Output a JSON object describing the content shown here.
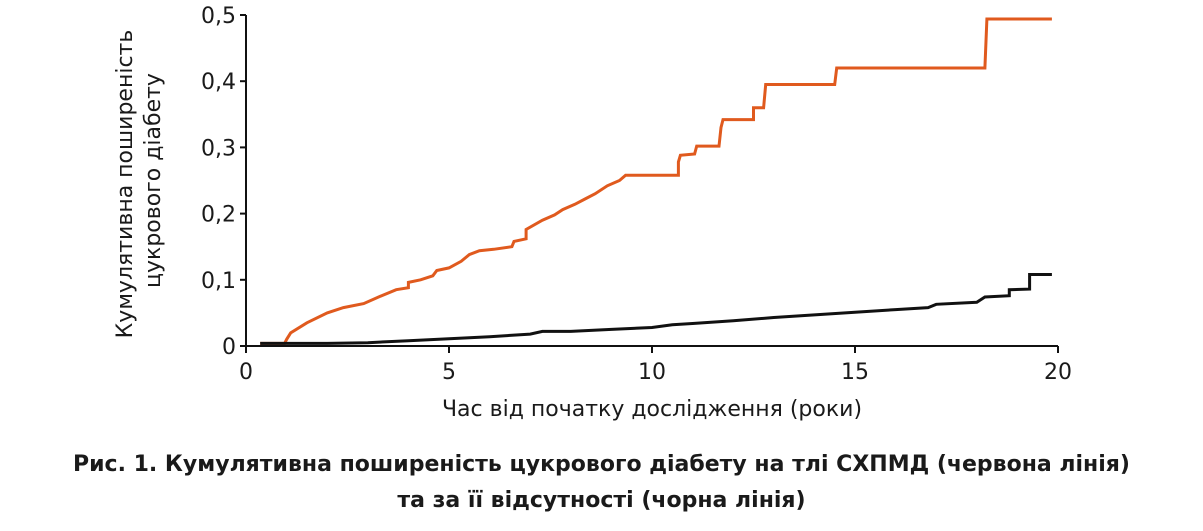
{
  "chart_data": {
    "type": "line",
    "xlabel": "Час від початку дослідження (роки)",
    "ylabel_lines": [
      "Кумулятивна поширеність",
      "цукрового діабету"
    ],
    "xlim": [
      0,
      20
    ],
    "ylim": [
      0,
      0.5
    ],
    "x_ticks": [
      0,
      5,
      10,
      15,
      20
    ],
    "x_tick_labels": [
      "0",
      "5",
      "10",
      "15",
      "20"
    ],
    "y_ticks": [
      0,
      0.1,
      0.2,
      0.3,
      0.4,
      0.5
    ],
    "y_tick_labels": [
      "0",
      "0,1",
      "0,2",
      "0,3",
      "0,4",
      "0,5"
    ],
    "grid": false,
    "series": [
      {
        "color": "#e05a1e",
        "points": [
          [
            0.35,
            0.004
          ],
          [
            0.95,
            0.004
          ],
          [
            1.0,
            0.01
          ],
          [
            1.1,
            0.02
          ],
          [
            1.5,
            0.035
          ],
          [
            2.0,
            0.05
          ],
          [
            2.4,
            0.058
          ],
          [
            2.9,
            0.064
          ],
          [
            3.3,
            0.075
          ],
          [
            3.7,
            0.085
          ],
          [
            4.0,
            0.088
          ],
          [
            4.0,
            0.096
          ],
          [
            4.3,
            0.1
          ],
          [
            4.6,
            0.106
          ],
          [
            4.7,
            0.114
          ],
          [
            5.0,
            0.118
          ],
          [
            5.3,
            0.128
          ],
          [
            5.5,
            0.138
          ],
          [
            5.75,
            0.144
          ],
          [
            6.1,
            0.146
          ],
          [
            6.55,
            0.15
          ],
          [
            6.6,
            0.158
          ],
          [
            6.9,
            0.162
          ],
          [
            6.9,
            0.176
          ],
          [
            7.3,
            0.19
          ],
          [
            7.6,
            0.198
          ],
          [
            7.8,
            0.206
          ],
          [
            8.1,
            0.214
          ],
          [
            8.35,
            0.222
          ],
          [
            8.6,
            0.23
          ],
          [
            8.9,
            0.242
          ],
          [
            9.2,
            0.25
          ],
          [
            9.35,
            0.258
          ],
          [
            10.65,
            0.258
          ],
          [
            10.65,
            0.278
          ],
          [
            10.7,
            0.288
          ],
          [
            11.05,
            0.29
          ],
          [
            11.1,
            0.302
          ],
          [
            11.65,
            0.302
          ],
          [
            11.7,
            0.33
          ],
          [
            11.75,
            0.342
          ],
          [
            12.5,
            0.342
          ],
          [
            12.5,
            0.36
          ],
          [
            12.75,
            0.36
          ],
          [
            12.8,
            0.395
          ],
          [
            14.5,
            0.395
          ],
          [
            14.55,
            0.42
          ],
          [
            18.2,
            0.42
          ],
          [
            18.25,
            0.494
          ],
          [
            19.85,
            0.494
          ]
        ]
      },
      {
        "color": "#111111",
        "points": [
          [
            0.35,
            0.004
          ],
          [
            2.0,
            0.004
          ],
          [
            3.0,
            0.005
          ],
          [
            4.0,
            0.008
          ],
          [
            5.0,
            0.011
          ],
          [
            6.0,
            0.014
          ],
          [
            7.0,
            0.018
          ],
          [
            7.3,
            0.022
          ],
          [
            8.0,
            0.022
          ],
          [
            9.0,
            0.025
          ],
          [
            10.0,
            0.028
          ],
          [
            10.5,
            0.032
          ],
          [
            11.0,
            0.034
          ],
          [
            12.0,
            0.038
          ],
          [
            13.0,
            0.043
          ],
          [
            14.0,
            0.047
          ],
          [
            15.0,
            0.051
          ],
          [
            16.0,
            0.055
          ],
          [
            16.8,
            0.058
          ],
          [
            17.0,
            0.063
          ],
          [
            18.0,
            0.066
          ],
          [
            18.2,
            0.074
          ],
          [
            18.8,
            0.076
          ],
          [
            18.8,
            0.085
          ],
          [
            19.3,
            0.086
          ],
          [
            19.3,
            0.108
          ],
          [
            19.85,
            0.108
          ]
        ]
      }
    ]
  },
  "caption": {
    "line1": "Рис. 1. Кумулятивна поширеність цукрового діабету на тлі СХПМД (червона лінія)",
    "line2": "та за її відсутності (чорна лінія)"
  }
}
